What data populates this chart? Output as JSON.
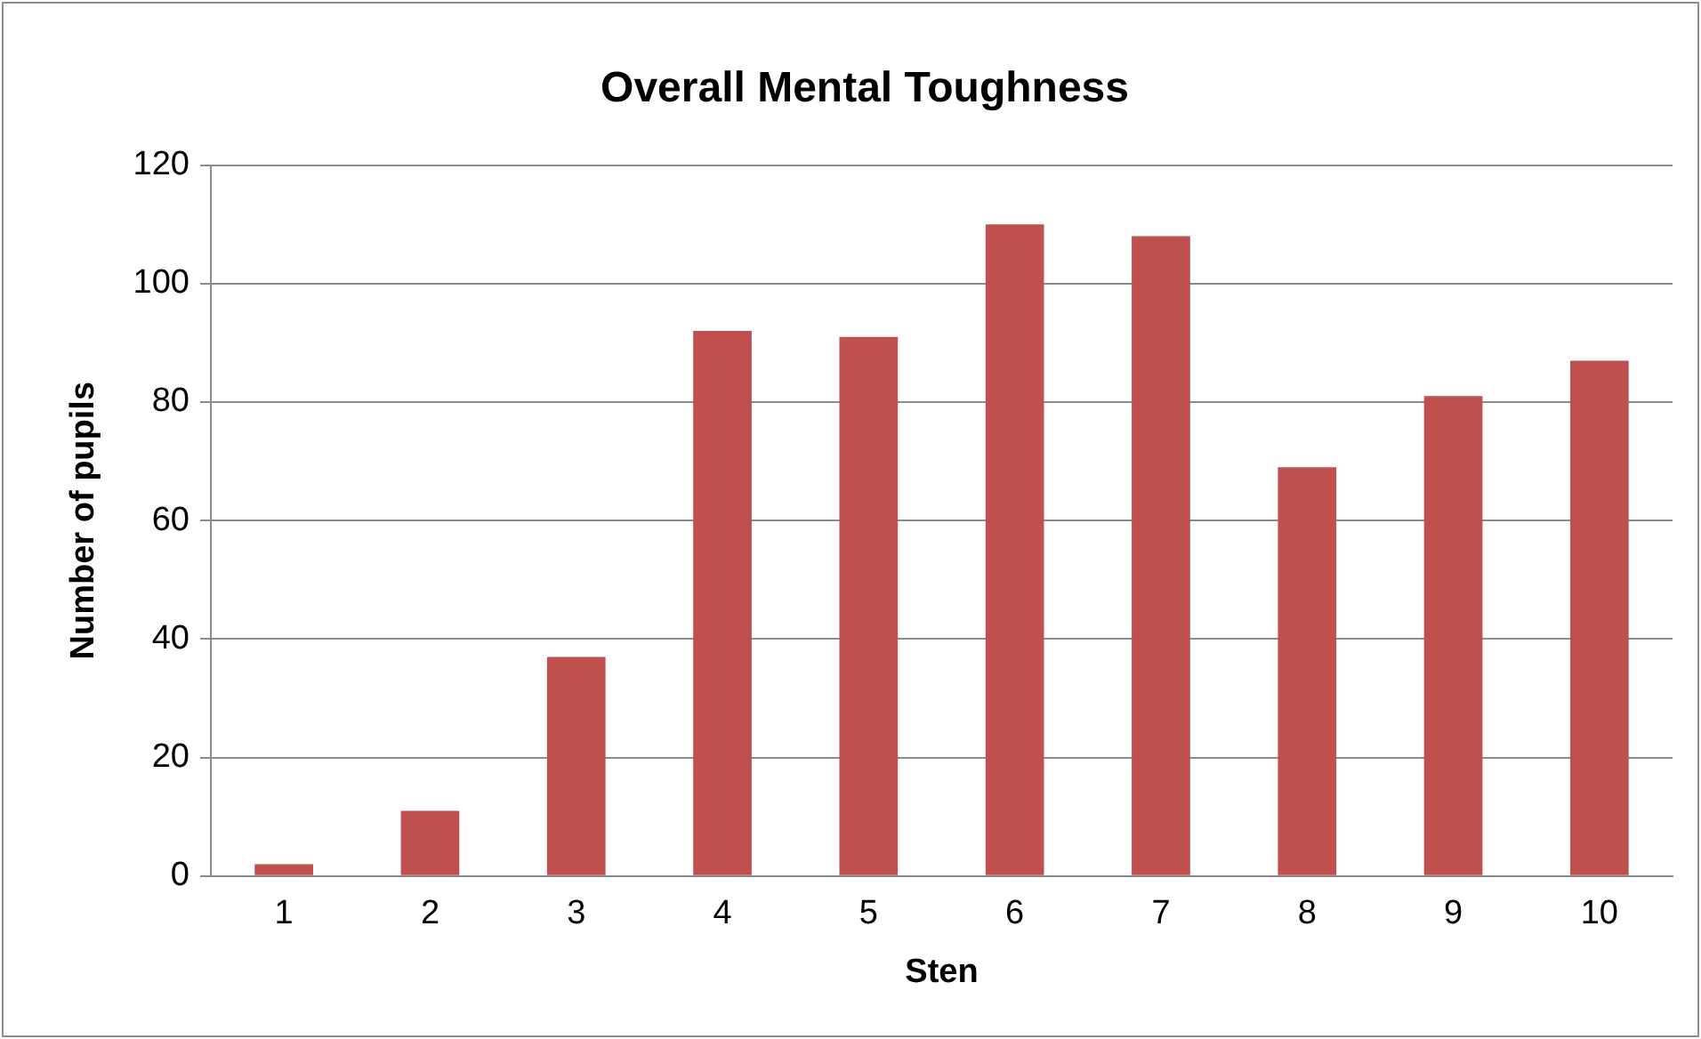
{
  "chart_data": {
    "type": "bar",
    "title": "Overall Mental Toughness",
    "xlabel": "Sten",
    "ylabel": "Number of pupils",
    "categories": [
      "1",
      "2",
      "3",
      "4",
      "5",
      "6",
      "7",
      "8",
      "9",
      "10"
    ],
    "values": [
      2,
      11,
      37,
      92,
      91,
      110,
      108,
      69,
      81,
      87
    ],
    "color": "#c0504d",
    "ylim": [
      0,
      120
    ],
    "yticks": [
      0,
      20,
      40,
      60,
      80,
      100,
      120
    ],
    "grid": "y",
    "legend": false
  }
}
